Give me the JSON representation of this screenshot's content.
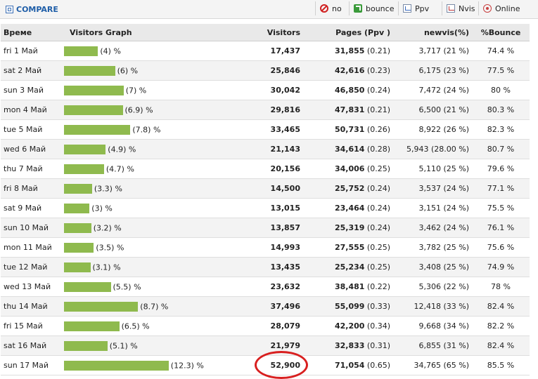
{
  "toolbar": {
    "compare_label": "COMPARE",
    "buttons": [
      {
        "label": "no",
        "icon": "no-icon"
      },
      {
        "label": "bounce",
        "icon": "bounce-icon"
      },
      {
        "label": "Ppv",
        "icon": "ppv-chart-icon"
      },
      {
        "label": "Nvis",
        "icon": "nvis-chart-icon"
      },
      {
        "label": "Online",
        "icon": "online-icon"
      }
    ]
  },
  "table": {
    "headers": [
      "Време",
      "Visitors Graph",
      "Visitors",
      "Pages (Ppv )",
      "newvis(%)",
      "%Bounce"
    ],
    "rows": [
      {
        "day": "fri 1 Май",
        "graph_pct": "(4) %",
        "share": 4,
        "visitors": "17,437",
        "pages": "31,855",
        "ppv": "(0.21)",
        "newvis": "3,717 (21 %)",
        "bounce": "74.4 %"
      },
      {
        "day": "sat 2 Май",
        "graph_pct": "(6) %",
        "share": 6,
        "visitors": "25,846",
        "pages": "42,616",
        "ppv": "(0.23)",
        "newvis": "6,175 (23 %)",
        "bounce": "77.5 %"
      },
      {
        "day": "sun 3 Май",
        "graph_pct": "(7) %",
        "share": 7,
        "visitors": "30,042",
        "pages": "46,850",
        "ppv": "(0.24)",
        "newvis": "7,472 (24 %)",
        "bounce": "80 %"
      },
      {
        "day": "mon 4 Май",
        "graph_pct": "(6.9) %",
        "share": 6.9,
        "visitors": "29,816",
        "pages": "47,831",
        "ppv": "(0.21)",
        "newvis": "6,500 (21 %)",
        "bounce": "80.3 %"
      },
      {
        "day": "tue 5 Май",
        "graph_pct": "(7.8) %",
        "share": 7.8,
        "visitors": "33,465",
        "pages": "50,731",
        "ppv": "(0.26)",
        "newvis": "8,922 (26 %)",
        "bounce": "82.3 %"
      },
      {
        "day": "wed 6 Май",
        "graph_pct": "(4.9) %",
        "share": 4.9,
        "visitors": "21,143",
        "pages": "34,614",
        "ppv": "(0.28)",
        "newvis": "5,943 (28.00 %)",
        "bounce": "80.7 %"
      },
      {
        "day": "thu 7 Май",
        "graph_pct": "(4.7) %",
        "share": 4.7,
        "visitors": "20,156",
        "pages": "34,006",
        "ppv": "(0.25)",
        "newvis": "5,110 (25 %)",
        "bounce": "79.6 %"
      },
      {
        "day": "fri 8 Май",
        "graph_pct": "(3.3) %",
        "share": 3.3,
        "visitors": "14,500",
        "pages": "25,752",
        "ppv": "(0.24)",
        "newvis": "3,537 (24 %)",
        "bounce": "77.1 %"
      },
      {
        "day": "sat 9 Май",
        "graph_pct": "(3) %",
        "share": 3,
        "visitors": "13,015",
        "pages": "23,464",
        "ppv": "(0.24)",
        "newvis": "3,151 (24 %)",
        "bounce": "75.5 %"
      },
      {
        "day": "sun 10 Май",
        "graph_pct": "(3.2) %",
        "share": 3.2,
        "visitors": "13,857",
        "pages": "25,319",
        "ppv": "(0.24)",
        "newvis": "3,462 (24 %)",
        "bounce": "76.1 %"
      },
      {
        "day": "mon 11 Май",
        "graph_pct": "(3.5) %",
        "share": 3.5,
        "visitors": "14,993",
        "pages": "27,555",
        "ppv": "(0.25)",
        "newvis": "3,782 (25 %)",
        "bounce": "75.6 %"
      },
      {
        "day": "tue 12 Май",
        "graph_pct": "(3.1) %",
        "share": 3.1,
        "visitors": "13,435",
        "pages": "25,234",
        "ppv": "(0.25)",
        "newvis": "3,408 (25 %)",
        "bounce": "74.9 %"
      },
      {
        "day": "wed 13 Май",
        "graph_pct": "(5.5) %",
        "share": 5.5,
        "visitors": "23,632",
        "pages": "38,481",
        "ppv": "(0.22)",
        "newvis": "5,306 (22 %)",
        "bounce": "78 %"
      },
      {
        "day": "thu 14 Май",
        "graph_pct": "(8.7) %",
        "share": 8.7,
        "visitors": "37,496",
        "pages": "55,099",
        "ppv": "(0.33)",
        "newvis": "12,418 (33 %)",
        "bounce": "82.4 %"
      },
      {
        "day": "fri 15 Май",
        "graph_pct": "(6.5) %",
        "share": 6.5,
        "visitors": "28,079",
        "pages": "42,200",
        "ppv": "(0.34)",
        "newvis": "9,668 (34 %)",
        "bounce": "82.2 %"
      },
      {
        "day": "sat 16 Май",
        "graph_pct": "(5.1) %",
        "share": 5.1,
        "visitors": "21,979",
        "pages": "32,833",
        "ppv": "(0.31)",
        "newvis": "6,855 (31 %)",
        "bounce": "82.4 %"
      },
      {
        "day": "sun 17 Май",
        "graph_pct": "(12.3) %",
        "share": 12.3,
        "visitors": "52,900",
        "pages": "71,054",
        "ppv": "(0.65)",
        "newvis": "34,765 (65 %)",
        "bounce": "85.5 %"
      }
    ]
  },
  "colors": {
    "bar": "#8fba4e",
    "highlight": "#d81f1f",
    "link": "#1f5ea8"
  }
}
